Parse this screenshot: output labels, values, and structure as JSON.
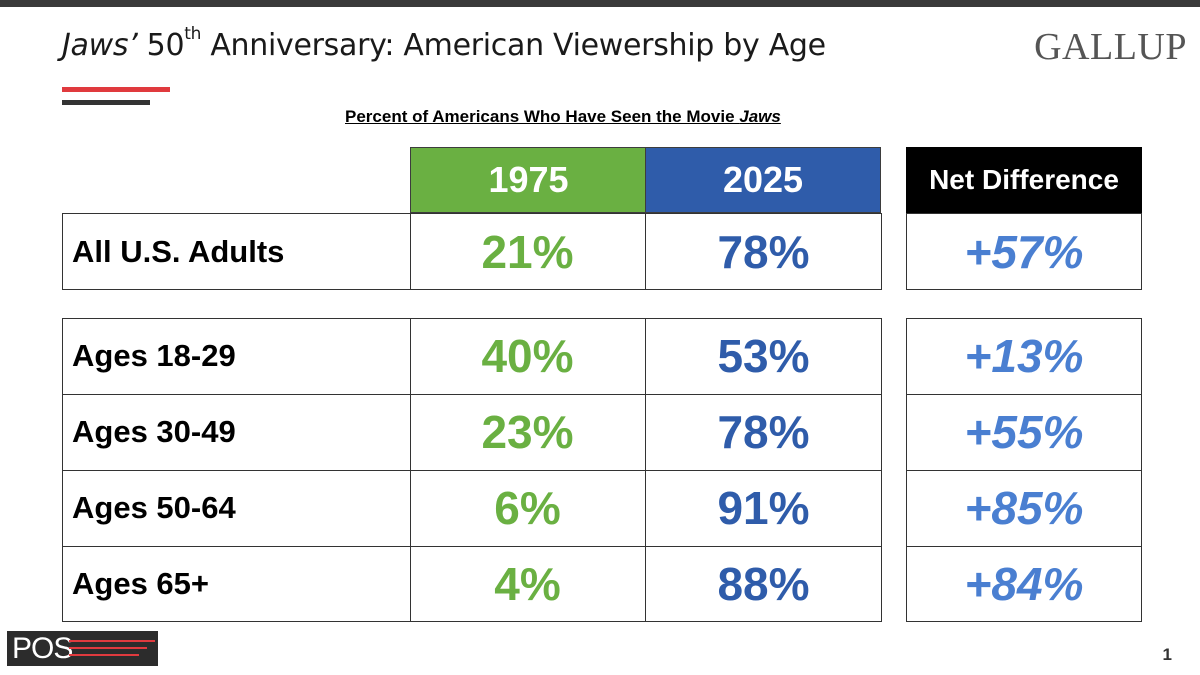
{
  "header": {
    "title_italic": "Jaws’",
    "title_num": " 50",
    "title_sup": "th",
    "title_rest": " Anniversary: American Viewership by Age",
    "brand": "GALLUP"
  },
  "chart_data": {
    "type": "table",
    "title": "Percent of Americans Who Have Seen the Movie Jaws",
    "subtitle_text": "Percent of Americans Who Have Seen the Movie ",
    "subtitle_italic": "Jaws",
    "columns": [
      "1975",
      "2025",
      "Net Difference"
    ],
    "rows": [
      {
        "label": "All U.S. Adults",
        "v1975": "21%",
        "v2025": "78%",
        "net": "+57%"
      },
      {
        "label": "Ages 18-29",
        "v1975": "40%",
        "v2025": "53%",
        "net": "+13%"
      },
      {
        "label": "Ages 30-49",
        "v1975": "23%",
        "v2025": "78%",
        "net": "+55%"
      },
      {
        "label": "Ages 50-64",
        "v1975": "6%",
        "v2025": "91%",
        "net": "+85%"
      },
      {
        "label": "Ages 65+",
        "v1975": "4%",
        "v2025": "88%",
        "net": "+84%"
      }
    ],
    "colors": {
      "c1975": "#6ab042",
      "c2025": "#2f5caa",
      "net": "#4a7fd1",
      "net_header": "#000000"
    }
  },
  "footer": {
    "logo_text": "POS",
    "page_number": "1"
  }
}
